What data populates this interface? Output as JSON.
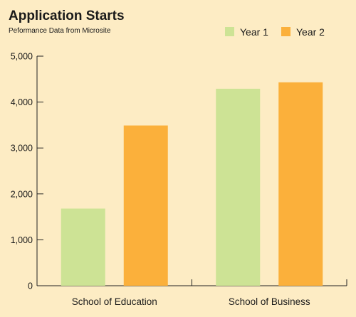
{
  "chart_data": {
    "type": "bar",
    "title": "Application Starts",
    "subtitle": "Peformance Data  from Microsite",
    "categories": [
      "School of Education",
      "School of Business"
    ],
    "series": [
      {
        "name": "Year 1",
        "color": "#cde395",
        "values": [
          1680,
          4290
        ]
      },
      {
        "name": "Year 2",
        "color": "#fbb03b",
        "values": [
          3490,
          4430
        ]
      }
    ],
    "xlabel": "",
    "ylabel": "",
    "ylim": [
      0,
      5000
    ],
    "yticks": [
      0,
      1000,
      2000,
      3000,
      4000,
      5000
    ],
    "ytick_labels": [
      "0",
      "1,000",
      "2,000",
      "3,000",
      "4,000",
      "5,000"
    ],
    "grid": false,
    "legend_position": "top-right"
  }
}
